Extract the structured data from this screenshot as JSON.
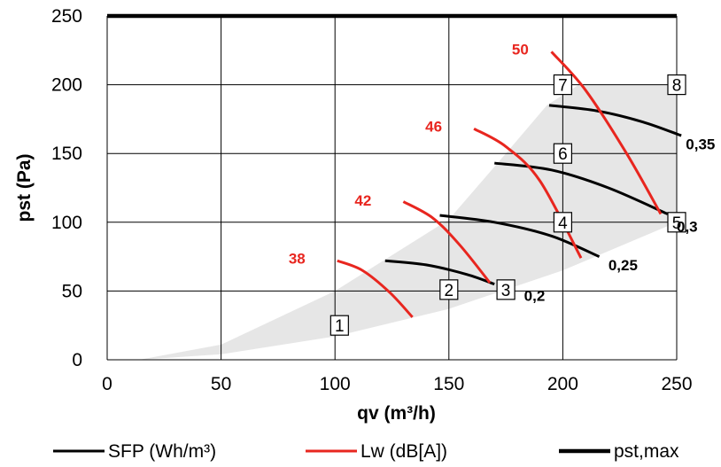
{
  "chart_data": {
    "type": "line",
    "title": "",
    "xlabel": "qv (m³/h)",
    "ylabel": "pst (Pa)",
    "xlim": [
      0,
      250
    ],
    "ylim": [
      0,
      250
    ],
    "xticks": [
      "0",
      "50",
      "100",
      "150",
      "200",
      "250"
    ],
    "yticks": [
      "0",
      "50",
      "100",
      "150",
      "200",
      "250"
    ],
    "grid": true,
    "legend_position": "bottom",
    "colors": {
      "sfp": "#000000",
      "lw": "#e8261f",
      "pstmax": "#000000",
      "area": "#e6e6e6"
    },
    "operating_area": {
      "lower": [
        [
          14,
          0
        ],
        [
          50,
          4
        ],
        [
          100,
          17
        ],
        [
          150,
          37
        ],
        [
          200,
          65
        ],
        [
          250,
          100
        ]
      ],
      "upper": [
        [
          14,
          0
        ],
        [
          50,
          11
        ],
        [
          100,
          50
        ],
        [
          150,
          102
        ],
        [
          175,
          150
        ],
        [
          193,
          185
        ],
        [
          207,
          200
        ],
        [
          250,
          200
        ]
      ]
    },
    "series": [
      {
        "name": "SFP (Wh/m³)",
        "group": "sfp",
        "label": "0,2",
        "label_at": [
          183,
          43
        ],
        "points": [
          [
            122,
            72
          ],
          [
            140,
            69
          ],
          [
            158,
            62
          ],
          [
            170,
            55
          ]
        ]
      },
      {
        "name": "SFP (Wh/m³)",
        "group": "sfp",
        "label": "0,25",
        "label_at": [
          220,
          65
        ],
        "points": [
          [
            146,
            105
          ],
          [
            170,
            100
          ],
          [
            195,
            90
          ],
          [
            216,
            75
          ]
        ]
      },
      {
        "name": "SFP (Wh/m³)",
        "group": "sfp",
        "label": "0,3",
        "label_at": [
          250,
          93
        ],
        "points": [
          [
            170,
            143
          ],
          [
            195,
            138
          ],
          [
            220,
            125
          ],
          [
            246,
            106
          ]
        ]
      },
      {
        "name": "SFP (Wh/m³)",
        "group": "sfp",
        "label": "0,35",
        "label_at": [
          254,
          153
        ],
        "points": [
          [
            194,
            185
          ],
          [
            215,
            181
          ],
          [
            235,
            173
          ],
          [
            252,
            163
          ]
        ]
      },
      {
        "name": "Lw (dB[A])",
        "group": "lw",
        "label": "38",
        "label_at": [
          87,
          70
        ],
        "points": [
          [
            101,
            72
          ],
          [
            112,
            65
          ],
          [
            124,
            49
          ],
          [
            134,
            31
          ]
        ]
      },
      {
        "name": "Lw (dB[A])",
        "group": "lw",
        "label": "42",
        "label_at": [
          116,
          112
        ],
        "points": [
          [
            130,
            115
          ],
          [
            143,
            103
          ],
          [
            155,
            83
          ],
          [
            168,
            56
          ]
        ]
      },
      {
        "name": "Lw (dB[A])",
        "group": "lw",
        "label": "46",
        "label_at": [
          147,
          166
        ],
        "points": [
          [
            161,
            168
          ],
          [
            175,
            155
          ],
          [
            190,
            130
          ],
          [
            208,
            74
          ]
        ]
      },
      {
        "name": "Lw (dB[A])",
        "group": "lw",
        "label": "50",
        "label_at": [
          185,
          222
        ],
        "points": [
          [
            195,
            224
          ],
          [
            210,
            196
          ],
          [
            228,
            150
          ],
          [
            243,
            106
          ]
        ]
      },
      {
        "name": "pst,max",
        "group": "pstmax",
        "points": [
          [
            0,
            250
          ],
          [
            250,
            250
          ]
        ]
      }
    ],
    "boxes": [
      {
        "label": "1",
        "x": 102,
        "y": 25
      },
      {
        "label": "2",
        "x": 150,
        "y": 51
      },
      {
        "label": "3",
        "x": 175,
        "y": 51
      },
      {
        "label": "4",
        "x": 200,
        "y": 100
      },
      {
        "label": "5",
        "x": 250,
        "y": 100
      },
      {
        "label": "6",
        "x": 200,
        "y": 150
      },
      {
        "label": "7",
        "x": 200,
        "y": 200
      },
      {
        "label": "8",
        "x": 250,
        "y": 200
      }
    ],
    "legend": [
      {
        "label": "SFP (Wh/m³)",
        "group": "sfp"
      },
      {
        "label": "Lw (dB[A])",
        "group": "lw"
      },
      {
        "label": "pst,max",
        "group": "pstmax"
      }
    ]
  }
}
